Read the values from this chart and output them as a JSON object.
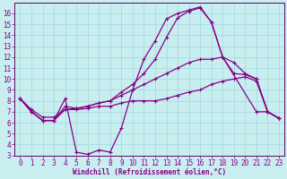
{
  "xlabel": "Windchill (Refroidissement éolien,°C)",
  "xlim": [
    -0.5,
    23.5
  ],
  "ylim": [
    3,
    17
  ],
  "yticks": [
    3,
    4,
    5,
    6,
    7,
    8,
    9,
    10,
    11,
    12,
    13,
    14,
    15,
    16
  ],
  "xticks": [
    0,
    1,
    2,
    3,
    4,
    5,
    6,
    7,
    8,
    9,
    10,
    11,
    12,
    13,
    14,
    15,
    16,
    17,
    18,
    19,
    20,
    21,
    22,
    23
  ],
  "bg_color": "#c8eef0",
  "grid_color": "#a0d8dc",
  "line_color": "#880088",
  "spine_color": "#660066",
  "curves": [
    {
      "x": [
        0,
        1,
        2,
        3,
        4,
        5,
        6,
        7,
        8,
        9,
        10,
        11,
        12,
        13,
        14,
        15,
        16,
        17,
        18,
        21,
        22,
        23
      ],
      "y": [
        8.2,
        7.0,
        6.2,
        6.2,
        8.2,
        3.3,
        3.1,
        3.5,
        3.3,
        5.5,
        9.0,
        11.8,
        13.5,
        15.5,
        16.0,
        16.3,
        16.6,
        15.2,
        12.0,
        7.0,
        7.0,
        6.4
      ]
    },
    {
      "x": [
        0,
        1,
        2,
        3,
        4,
        5,
        6,
        7,
        8,
        9,
        10,
        11,
        12,
        13,
        14,
        15,
        16,
        17,
        18,
        19,
        20,
        21,
        22,
        23
      ],
      "y": [
        8.2,
        7.0,
        6.2,
        6.2,
        7.5,
        7.3,
        7.5,
        7.8,
        8.0,
        8.8,
        9.5,
        10.5,
        11.8,
        13.8,
        15.6,
        16.2,
        16.5,
        15.2,
        12.0,
        10.5,
        10.4,
        10.0,
        7.0,
        6.4
      ]
    },
    {
      "x": [
        0,
        1,
        2,
        3,
        4,
        5,
        6,
        7,
        8,
        9,
        10,
        11,
        12,
        13,
        14,
        15,
        16,
        17,
        18,
        19,
        20,
        21,
        22,
        23
      ],
      "y": [
        8.2,
        7.2,
        6.5,
        6.5,
        7.2,
        7.3,
        7.5,
        7.8,
        8.0,
        8.5,
        9.0,
        9.5,
        10.0,
        10.5,
        11.0,
        11.5,
        11.8,
        11.8,
        12.0,
        11.5,
        10.5,
        10.0,
        7.0,
        6.4
      ]
    },
    {
      "x": [
        0,
        1,
        2,
        3,
        4,
        5,
        6,
        7,
        8,
        9,
        10,
        11,
        12,
        13,
        14,
        15,
        16,
        17,
        18,
        19,
        20,
        21,
        22,
        23
      ],
      "y": [
        8.2,
        7.0,
        6.2,
        6.2,
        7.2,
        7.2,
        7.3,
        7.5,
        7.5,
        7.8,
        8.0,
        8.0,
        8.0,
        8.2,
        8.5,
        8.8,
        9.0,
        9.5,
        9.8,
        10.0,
        10.2,
        9.8,
        7.0,
        6.4
      ]
    }
  ],
  "marker": "+",
  "markersize": 3,
  "linewidth": 0.9,
  "tick_fontsize": 5.5,
  "xlabel_fontsize": 5.5
}
